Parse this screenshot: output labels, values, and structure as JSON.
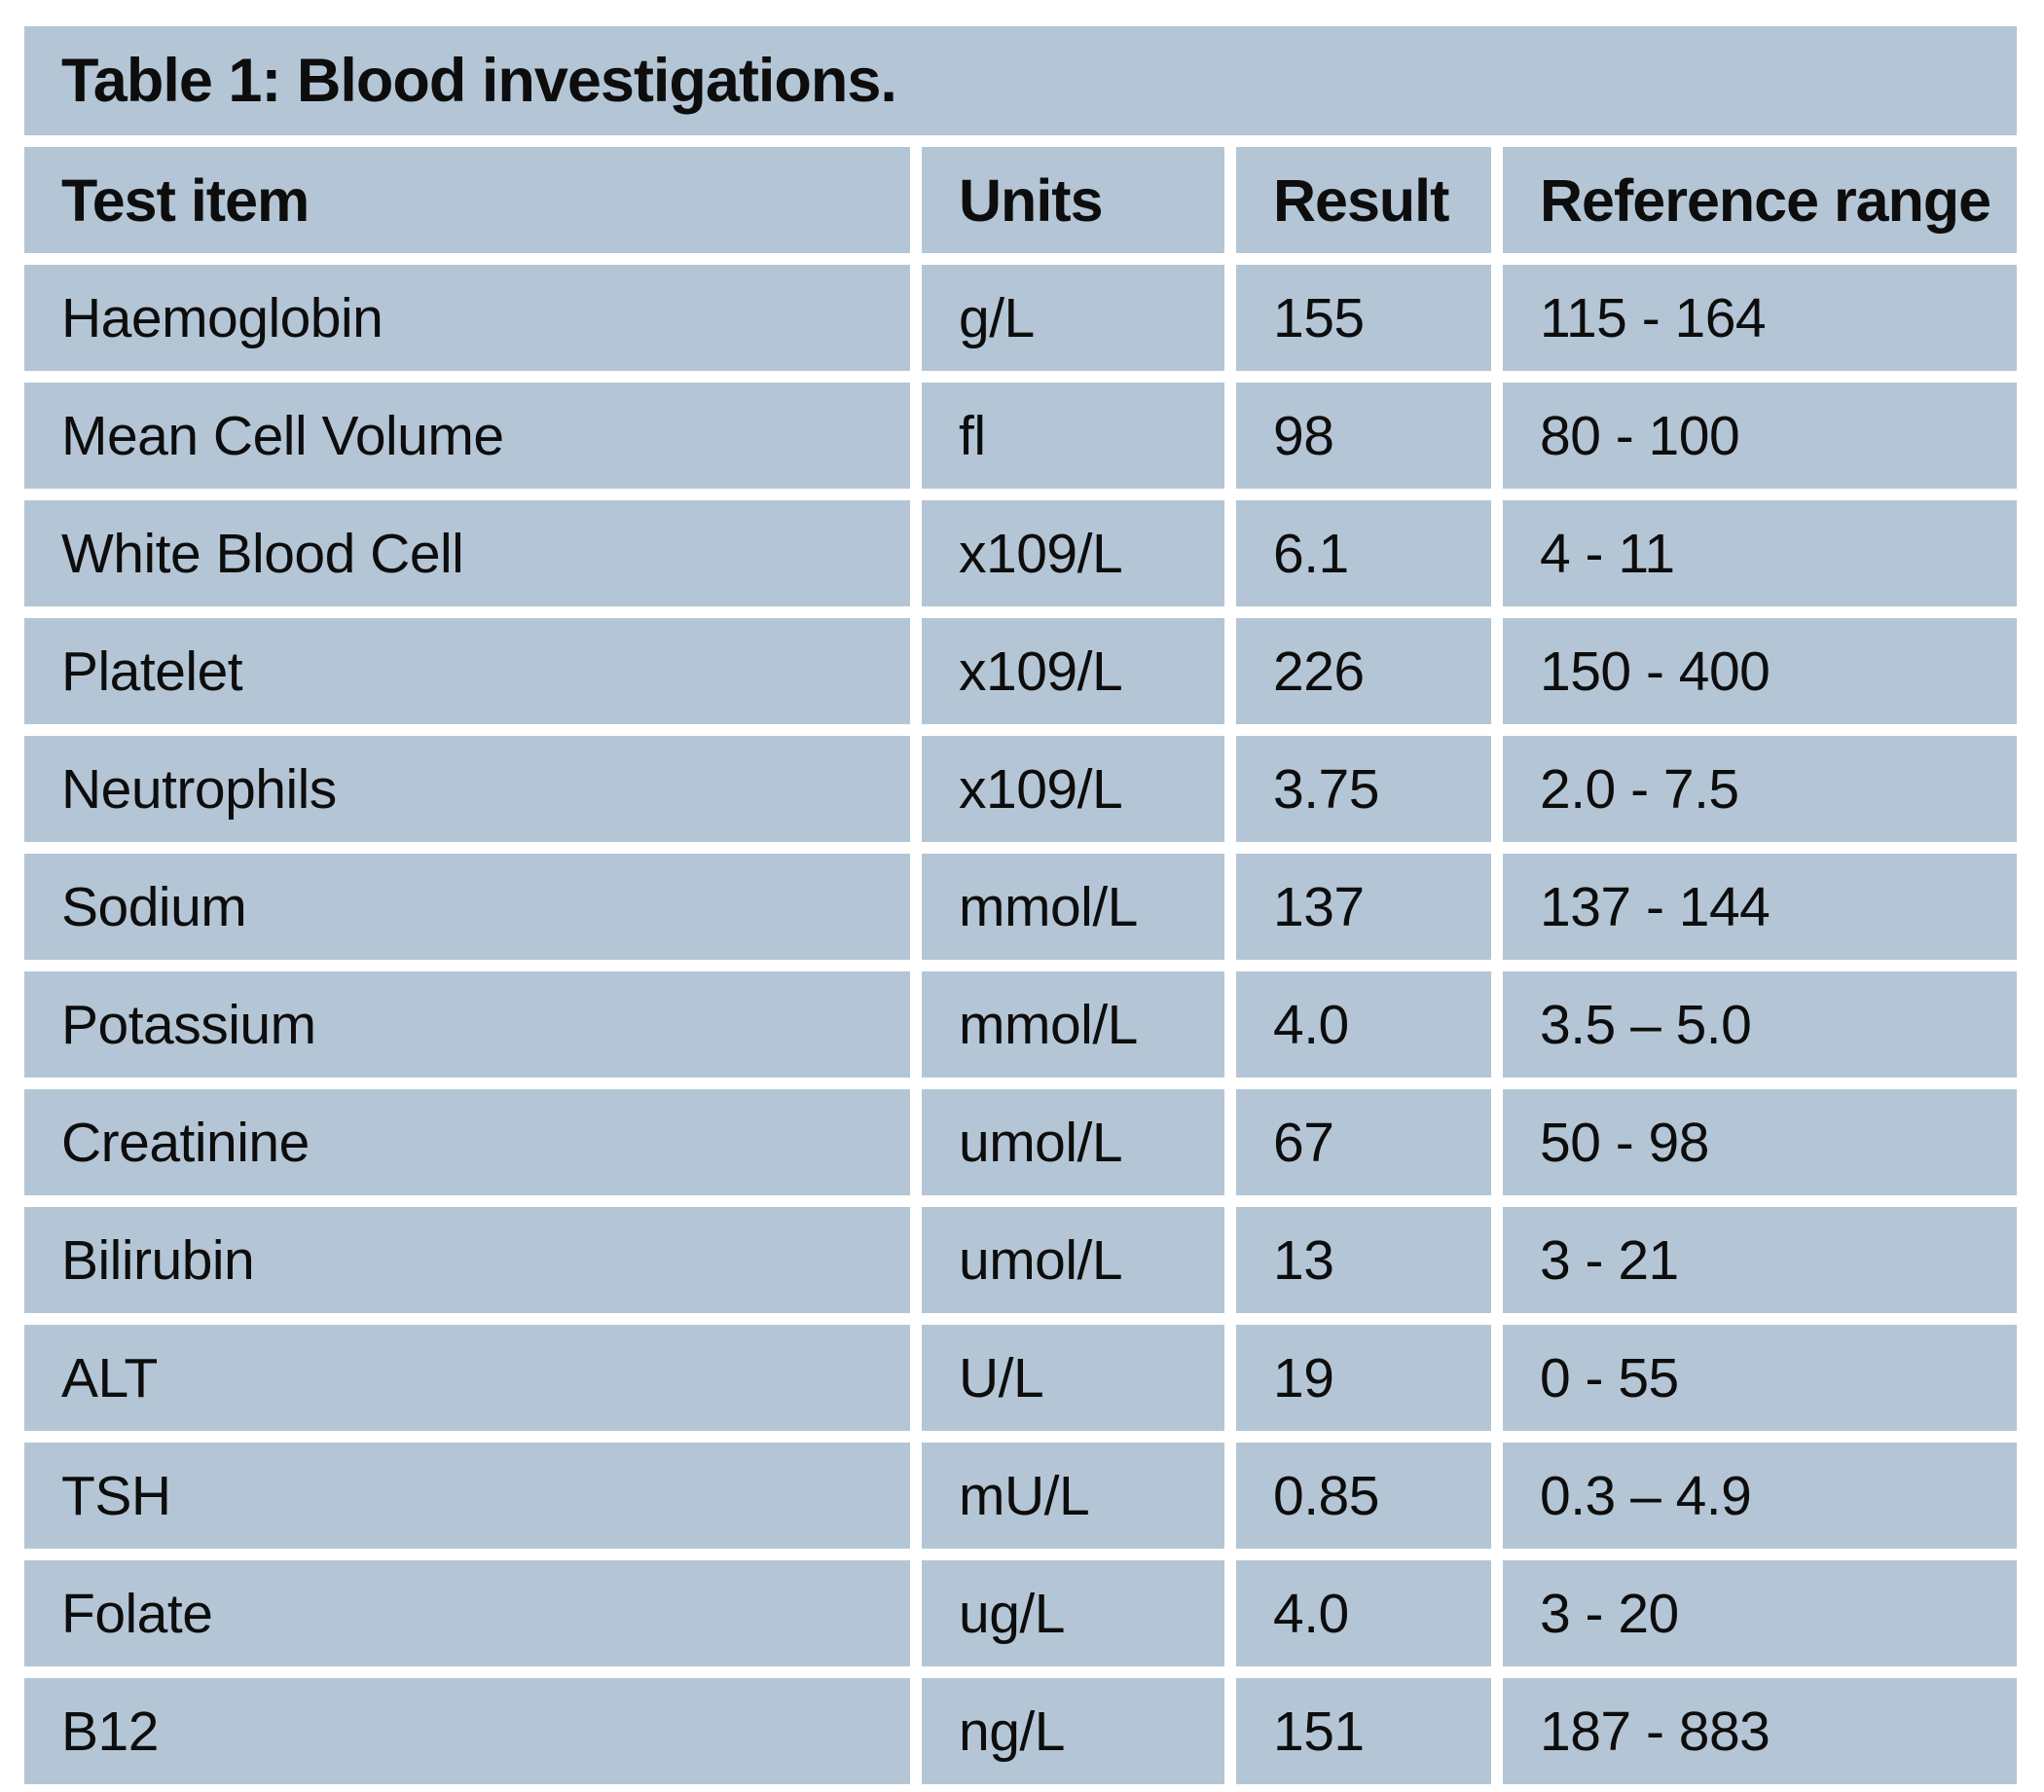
{
  "table": {
    "title": "Table 1: Blood investigations.",
    "columns": [
      "Test item",
      "Units",
      "Result",
      "Reference range"
    ],
    "rows": [
      {
        "test": "Haemoglobin",
        "units": "g/L",
        "result": "155",
        "range": "115 - 164"
      },
      {
        "test": "Mean Cell Volume",
        "units": "fl",
        "result": "98",
        "range": "80 - 100"
      },
      {
        "test": "White Blood Cell",
        "units": "x109/L",
        "result": "6.1",
        "range": "4 - 11"
      },
      {
        "test": "Platelet",
        "units": "x109/L",
        "result": "226",
        "range": "150 - 400"
      },
      {
        "test": "Neutrophils",
        "units": "x109/L",
        "result": "3.75",
        "range": "2.0 - 7.5"
      },
      {
        "test": "Sodium",
        "units": "mmol/L",
        "result": "137",
        "range": "137 - 144"
      },
      {
        "test": "Potassium",
        "units": "mmol/L",
        "result": "4.0",
        "range": "3.5 – 5.0"
      },
      {
        "test": "Creatinine",
        "units": "umol/L",
        "result": "67",
        "range": "50 - 98"
      },
      {
        "test": "Bilirubin",
        "units": "umol/L",
        "result": "13",
        "range": "3 - 21"
      },
      {
        "test": "ALT",
        "units": "U/L",
        "result": "19",
        "range": "0 - 55"
      },
      {
        "test": "TSH",
        "units": "mU/L",
        "result": "0.85",
        "range": "0.3 – 4.9"
      },
      {
        "test": "Folate",
        "units": "ug/L",
        "result": "4.0",
        "range": "3 - 20"
      },
      {
        "test": "B12",
        "units": "ng/L",
        "result": "151",
        "range": "187 - 883"
      }
    ]
  },
  "colors": {
    "cell_background": "#b4c6d5",
    "gap": "#ffffff",
    "text": "#0d0d0d"
  }
}
